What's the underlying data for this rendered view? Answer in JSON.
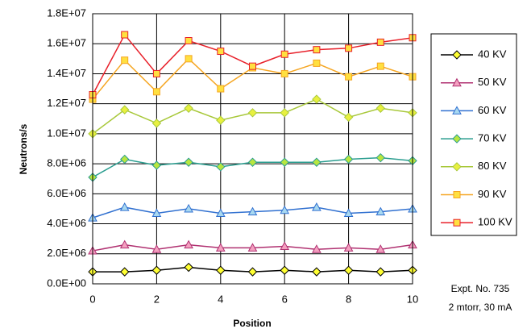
{
  "chart_data": {
    "type": "line",
    "y_label": "Neutrons/s",
    "x_label": "Position",
    "annotations": [
      "Expt. No. 735",
      "2 mtorr, 30 mA"
    ],
    "x": [
      0,
      1,
      2,
      3,
      4,
      5,
      6,
      7,
      8,
      9,
      10
    ],
    "xlim": [
      0,
      10
    ],
    "xticks": [
      0,
      2,
      4,
      6,
      8,
      10
    ],
    "ylim": [
      0,
      18000000
    ],
    "yticks": [
      {
        "value": 0,
        "label": "0.0E+00"
      },
      {
        "value": 2000000,
        "label": "2.0E+06"
      },
      {
        "value": 4000000,
        "label": "4.0E+06"
      },
      {
        "value": 6000000,
        "label": "6.0E+06"
      },
      {
        "value": 8000000,
        "label": "8.0E+06"
      },
      {
        "value": 10000000,
        "label": "1.0E+07"
      },
      {
        "value": 12000000,
        "label": "1.2E+07"
      },
      {
        "value": 14000000,
        "label": "1.4E+07"
      },
      {
        "value": 16000000,
        "label": "1.6E+07"
      },
      {
        "value": 18000000,
        "label": "1.8E+07"
      }
    ],
    "grid": true,
    "legend": "right",
    "series": [
      {
        "name": "40 KV",
        "color": "#000000",
        "marker": "diamond",
        "marker_fill": "#ffff33",
        "values": [
          800000,
          800000,
          900000,
          1100000,
          900000,
          800000,
          900000,
          800000,
          900000,
          800000,
          900000
        ]
      },
      {
        "name": "50 KV",
        "color": "#b03070",
        "marker": "triangle",
        "marker_fill": "#f4a0c0",
        "values": [
          2200000,
          2600000,
          2300000,
          2600000,
          2400000,
          2400000,
          2500000,
          2300000,
          2400000,
          2300000,
          2600000
        ]
      },
      {
        "name": "60 KV",
        "color": "#3070d0",
        "marker": "triangle",
        "marker_fill": "#a8d8f0",
        "values": [
          4400000,
          5100000,
          4700000,
          5000000,
          4700000,
          4800000,
          4900000,
          5100000,
          4700000,
          4800000,
          5000000
        ]
      },
      {
        "name": "70 KV",
        "color": "#2a9d8f",
        "marker": "diamond",
        "marker_fill": "#b8e640",
        "values": [
          7100000,
          8300000,
          7900000,
          8100000,
          7800000,
          8100000,
          8100000,
          8100000,
          8300000,
          8400000,
          8200000
        ]
      },
      {
        "name": "80 KV",
        "color": "#a8c83a",
        "marker": "diamond",
        "marker_fill": "#e8f040",
        "values": [
          10000000,
          11600000,
          10700000,
          11700000,
          10900000,
          11400000,
          11400000,
          12300000,
          11100000,
          11700000,
          11400000
        ]
      },
      {
        "name": "90 KV",
        "color": "#f5a623",
        "marker": "square",
        "marker_fill": "#ffe040",
        "values": [
          12300000,
          14900000,
          12800000,
          15000000,
          13000000,
          14400000,
          14000000,
          14700000,
          13800000,
          14500000,
          13800000
        ]
      },
      {
        "name": "100 KV",
        "color": "#e8202a",
        "marker": "square",
        "marker_fill": "#ffe040",
        "values": [
          12600000,
          16600000,
          14000000,
          16200000,
          15500000,
          14500000,
          15300000,
          15600000,
          15700000,
          16100000,
          16400000
        ]
      }
    ]
  }
}
